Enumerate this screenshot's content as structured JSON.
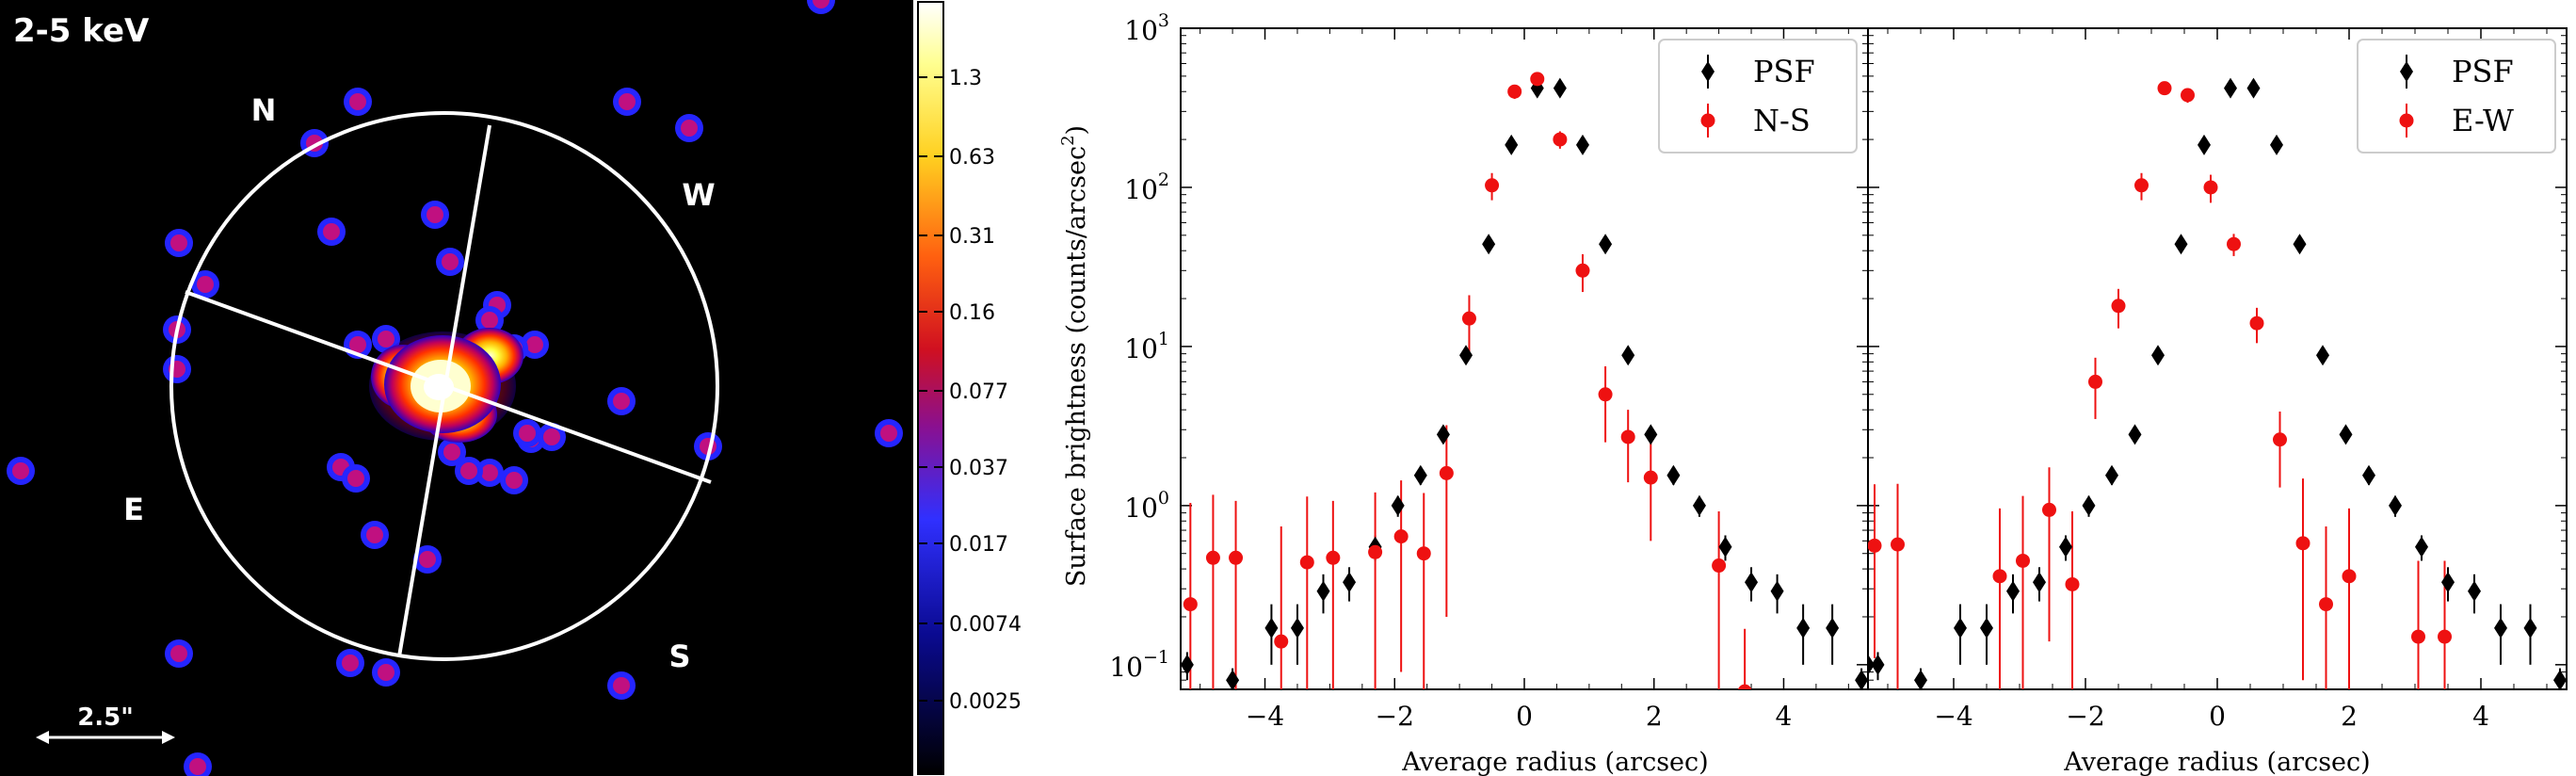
{
  "image_panel": {
    "band_label": "2-5 keV",
    "compass": {
      "north": "N",
      "west": "W",
      "east": "E",
      "south": "S"
    },
    "scale_bar_label": "2.5\"",
    "colorbar_ticks": [
      "1.3",
      "0.63",
      "0.31",
      "0.16",
      "0.077",
      "0.037",
      "0.017",
      "0.0074",
      "0.0025"
    ]
  },
  "chart_data": [
    {
      "type": "scatter",
      "panel": "left",
      "title": "",
      "xlabel": "Average radius (arcsec)",
      "ylabel": "Surface brightness (counts/arcsec^2)",
      "yscale": "log",
      "xlim": [
        -5.3,
        5.3
      ],
      "ylim": [
        0.07,
        1000
      ],
      "x_ticks": [
        -4,
        -2,
        0,
        2,
        4
      ],
      "y_ticks": [
        0.1,
        1,
        10,
        100,
        1000
      ],
      "y_tick_labels": [
        [
          "10",
          "−1"
        ],
        [
          "10",
          "0"
        ],
        [
          "10",
          "1"
        ],
        [
          "10",
          "2"
        ],
        [
          "10",
          "3"
        ]
      ],
      "legend_location": "top-right",
      "series": [
        {
          "name": "PSF",
          "color": "#000000",
          "marker": "diamond",
          "x": [
            -5.2,
            -4.5,
            -3.9,
            -3.5,
            -3.1,
            -2.7,
            -2.3,
            -1.95,
            -1.6,
            -1.25,
            -0.9,
            -0.55,
            -0.2,
            0.2,
            0.55,
            0.9,
            1.25,
            1.6,
            1.95,
            2.3,
            2.7,
            3.1,
            3.5,
            3.9,
            4.3,
            4.75,
            5.2
          ],
          "y": [
            0.1,
            0.08,
            0.17,
            0.17,
            0.29,
            0.33,
            0.55,
            1.0,
            1.55,
            2.8,
            8.8,
            44,
            185,
            420,
            420,
            185,
            44,
            8.8,
            2.8,
            1.55,
            1.0,
            0.55,
            0.33,
            0.29,
            0.17,
            0.17,
            0.08
          ],
          "err_lo": [
            0.02,
            0.015,
            0.07,
            0.07,
            0.08,
            0.08,
            0.1,
            0.15,
            0.2,
            0.3,
            0.8,
            4,
            15,
            30,
            30,
            15,
            4,
            0.8,
            0.3,
            0.2,
            0.15,
            0.1,
            0.08,
            0.08,
            0.07,
            0.07,
            0.015
          ],
          "err_hi": [
            0.02,
            0.015,
            0.07,
            0.07,
            0.08,
            0.08,
            0.1,
            0.15,
            0.2,
            0.3,
            0.8,
            4,
            15,
            30,
            30,
            15,
            4,
            0.8,
            0.3,
            0.2,
            0.15,
            0.1,
            0.08,
            0.08,
            0.07,
            0.07,
            0.015
          ]
        },
        {
          "name": "N-S",
          "color": "#ee1111",
          "marker": "circle",
          "x": [
            -5.15,
            -4.8,
            -4.45,
            -3.75,
            -3.35,
            -2.95,
            -2.3,
            -1.9,
            -1.55,
            -1.2,
            -0.85,
            -0.5,
            -0.15,
            0.2,
            0.55,
            0.9,
            1.25,
            1.6,
            1.95,
            3.0,
            3.4
          ],
          "y": [
            0.24,
            0.47,
            0.47,
            0.14,
            0.44,
            0.47,
            0.51,
            0.64,
            0.5,
            1.6,
            15,
            103,
            400,
            480,
            200,
            30,
            5.0,
            2.7,
            1.5,
            0.42,
            0.068
          ],
          "err_lo": [
            0.17,
            0.4,
            0.4,
            0.12,
            0.38,
            0.4,
            0.44,
            0.55,
            0.43,
            1.4,
            6,
            20,
            40,
            50,
            25,
            8,
            2.5,
            1.3,
            0.9,
            0.38,
            0.05
          ],
          "err_hi": [
            0.8,
            0.7,
            0.6,
            0.6,
            0.7,
            0.6,
            0.7,
            0.8,
            0.7,
            1.6,
            6,
            20,
            40,
            50,
            25,
            8,
            2.5,
            1.3,
            1.0,
            0.5,
            0.1
          ]
        }
      ]
    },
    {
      "type": "scatter",
      "panel": "right",
      "title": "",
      "xlabel": "Average radius (arcsec)",
      "ylabel": "",
      "yscale": "log",
      "xlim": [
        -5.3,
        5.3
      ],
      "ylim": [
        0.07,
        1000
      ],
      "x_ticks": [
        -4,
        -2,
        0,
        2,
        4
      ],
      "legend_location": "top-right",
      "series": [
        {
          "name": "PSF",
          "color": "#000000",
          "marker": "diamond",
          "x": [
            -5.3,
            -5.15,
            -4.5,
            -3.9,
            -3.5,
            -3.1,
            -2.7,
            -2.3,
            -1.95,
            -1.6,
            -1.25,
            -0.9,
            -0.55,
            -0.2,
            0.2,
            0.55,
            0.9,
            1.25,
            1.6,
            1.95,
            2.3,
            2.7,
            3.1,
            3.5,
            3.9,
            4.3,
            4.75,
            5.2
          ],
          "y": [
            0.1,
            0.1,
            0.08,
            0.17,
            0.17,
            0.29,
            0.33,
            0.55,
            1.0,
            1.55,
            2.8,
            8.8,
            44,
            185,
            420,
            420,
            185,
            44,
            8.8,
            2.8,
            1.55,
            1.0,
            0.55,
            0.33,
            0.29,
            0.17,
            0.17,
            0.08
          ],
          "err_lo": [
            0.02,
            0.02,
            0.015,
            0.07,
            0.07,
            0.08,
            0.08,
            0.1,
            0.15,
            0.2,
            0.3,
            0.8,
            4,
            15,
            30,
            30,
            15,
            4,
            0.8,
            0.3,
            0.2,
            0.15,
            0.1,
            0.08,
            0.08,
            0.07,
            0.07,
            0.015
          ],
          "err_hi": [
            0.02,
            0.02,
            0.015,
            0.07,
            0.07,
            0.08,
            0.08,
            0.1,
            0.15,
            0.2,
            0.3,
            0.8,
            4,
            15,
            30,
            30,
            15,
            4,
            0.8,
            0.3,
            0.2,
            0.15,
            0.1,
            0.08,
            0.08,
            0.07,
            0.07,
            0.015
          ]
        },
        {
          "name": "E-W",
          "color": "#ee1111",
          "marker": "circle",
          "x": [
            -5.2,
            -4.85,
            -3.3,
            -2.95,
            -2.55,
            -2.2,
            -1.85,
            -1.5,
            -1.15,
            -0.8,
            -0.45,
            -0.1,
            0.25,
            0.6,
            0.95,
            1.3,
            1.65,
            2.0,
            3.05,
            3.45
          ],
          "y": [
            0.56,
            0.57,
            0.36,
            0.45,
            0.94,
            0.32,
            6.0,
            18,
            103,
            420,
            380,
            100,
            44,
            14,
            2.6,
            0.58,
            0.24,
            0.36,
            0.15,
            0.15
          ],
          "err_lo": [
            0.45,
            0.5,
            0.3,
            0.38,
            0.8,
            0.27,
            2.5,
            5,
            20,
            40,
            40,
            20,
            7,
            3.5,
            1.3,
            0.5,
            0.2,
            0.3,
            0.12,
            0.12
          ],
          "err_hi": [
            0.8,
            0.8,
            0.6,
            0.7,
            0.8,
            0.6,
            2.5,
            5,
            20,
            40,
            40,
            20,
            7,
            3.5,
            1.3,
            0.9,
            0.5,
            0.6,
            0.3,
            0.3
          ]
        }
      ]
    }
  ]
}
